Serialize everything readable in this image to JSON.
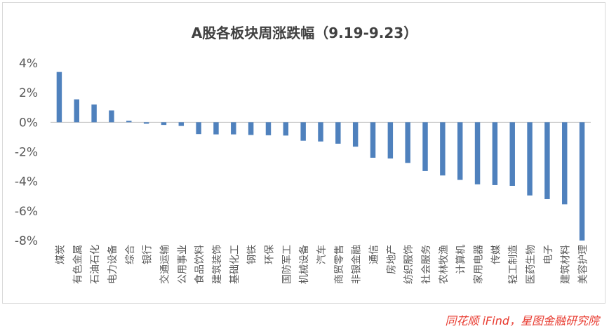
{
  "colors": {
    "bar": "#4f81bd",
    "axis": "#bfbfbf",
    "text": "#595959",
    "title": "#404040",
    "source": "#e8392e"
  },
  "source_note": "同花顺 iFind，星图金融研究院",
  "chart_data": {
    "type": "bar",
    "title": "A股各板块周涨跌幅（9.19-9.23）",
    "xlabel": "",
    "ylabel": "",
    "ylim": [
      -8,
      4
    ],
    "yticks": [
      4,
      2,
      0,
      -2,
      -4,
      -6,
      -8
    ],
    "ytick_labels": [
      "4%",
      "2%",
      "0%",
      "-2%",
      "-4%",
      "-6%",
      "-8%"
    ],
    "grid": false,
    "legend": "none",
    "categories": [
      "煤炭",
      "有色金属",
      "石油石化",
      "电力设备",
      "综合",
      "银行",
      "交通运输",
      "公用事业",
      "食品饮料",
      "建筑装饰",
      "基础化工",
      "钢铁",
      "环保",
      "国防军工",
      "机械设备",
      "汽车",
      "商贸零售",
      "非银金融",
      "通信",
      "房地产",
      "纺织服饰",
      "社会服务",
      "农林牧渔",
      "计算机",
      "家用电器",
      "传媒",
      "轻工制造",
      "医药生物",
      "电子",
      "建筑材料",
      "美容护理"
    ],
    "values": [
      3.4,
      1.55,
      1.2,
      0.8,
      0.1,
      -0.1,
      -0.18,
      -0.25,
      -0.8,
      -0.82,
      -0.82,
      -0.86,
      -0.88,
      -0.9,
      -1.25,
      -1.3,
      -1.45,
      -1.65,
      -2.4,
      -2.45,
      -2.75,
      -3.3,
      -3.6,
      -3.9,
      -4.2,
      -4.25,
      -4.3,
      -4.95,
      -5.2,
      -5.55,
      -8.0
    ]
  }
}
